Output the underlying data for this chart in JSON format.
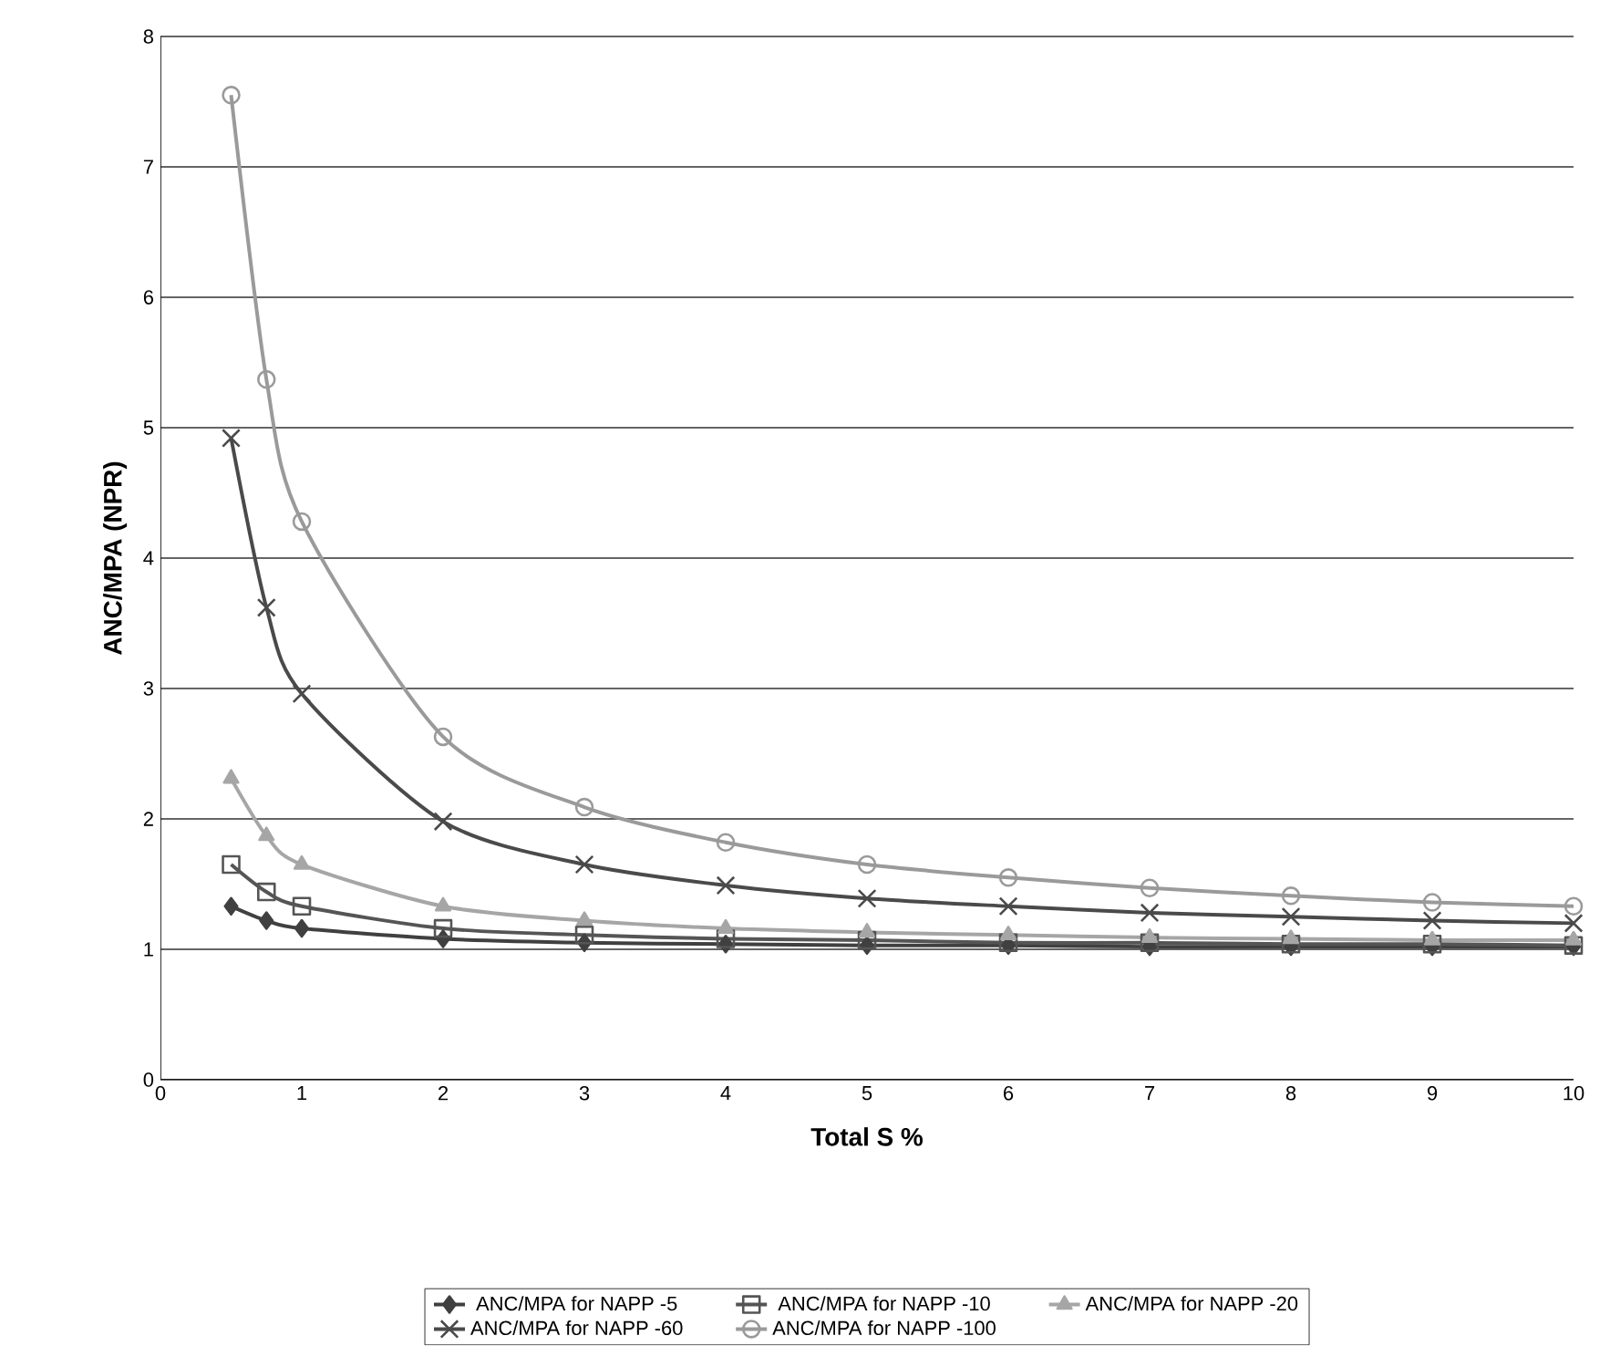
{
  "chart_data": {
    "type": "line",
    "xlabel": "Total S %",
    "ylabel": "ANC/MPA (NPR)",
    "x": [
      0.5,
      0.75,
      1,
      2,
      3,
      4,
      5,
      6,
      7,
      8,
      9,
      10
    ],
    "xlim": [
      0,
      10
    ],
    "xticks": [
      0,
      1,
      2,
      3,
      4,
      5,
      6,
      7,
      8,
      9,
      10
    ],
    "ylim": [
      0,
      8
    ],
    "yticks": [
      0,
      1,
      2,
      3,
      4,
      5,
      6,
      7,
      8
    ],
    "grid": "y",
    "legend": "bottom",
    "series": [
      {
        "name": "ANC/MPA for NAPP -5",
        "color": "#404040",
        "marker": "diamond",
        "values": [
          1.33,
          1.22,
          1.16,
          1.08,
          1.05,
          1.04,
          1.03,
          1.03,
          1.02,
          1.02,
          1.02,
          1.02
        ]
      },
      {
        "name": "ANC/MPA for NAPP -10",
        "color": "#555555",
        "marker": "square",
        "values": [
          1.65,
          1.44,
          1.33,
          1.16,
          1.11,
          1.08,
          1.07,
          1.05,
          1.05,
          1.04,
          1.04,
          1.03
        ]
      },
      {
        "name": "ANC/MPA for NAPP -20",
        "color": "#a6a6a6",
        "marker": "triangle",
        "values": [
          2.31,
          1.87,
          1.65,
          1.33,
          1.22,
          1.16,
          1.13,
          1.11,
          1.09,
          1.08,
          1.07,
          1.07
        ]
      },
      {
        "name": "ANC/MPA for NAPP -60",
        "color": "#4a4a4a",
        "marker": "cross",
        "values": [
          4.92,
          3.62,
          2.96,
          1.98,
          1.65,
          1.49,
          1.39,
          1.33,
          1.28,
          1.25,
          1.22,
          1.2
        ]
      },
      {
        "name": "ANC/MPA for NAPP -100",
        "color": "#9a9a9a",
        "marker": "circle",
        "values": [
          7.55,
          5.37,
          4.28,
          2.63,
          2.09,
          1.82,
          1.65,
          1.55,
          1.47,
          1.41,
          1.36,
          1.33
        ]
      }
    ]
  }
}
